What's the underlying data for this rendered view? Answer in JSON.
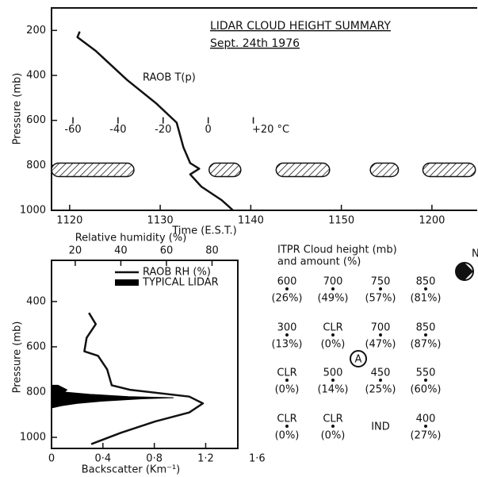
{
  "chart_data": [
    {
      "type": "line",
      "title": "LIDAR CLOUD HEIGHT SUMMARY",
      "subtitle": "Sept. 24th 1976",
      "xlabel": "Time (E.S.T.)",
      "ylabel": "Pressure (mb)",
      "xlim": [
        678,
        725
      ],
      "xticks": [
        {
          "value": 680,
          "label": "1120"
        },
        {
          "value": 690,
          "label": "1130"
        },
        {
          "value": 700,
          "label": "1140"
        },
        {
          "value": 710,
          "label": "1150"
        },
        {
          "value": 720,
          "label": "1200"
        }
      ],
      "ylim": [
        1000,
        100
      ],
      "yticks": [
        200,
        400,
        600,
        800,
        1000
      ],
      "x2lim": [
        -69.5,
        119.3
      ],
      "x2ticks": [
        -60,
        -40,
        -20,
        0,
        {
          "value": 20,
          "label": "+20 °C"
        }
      ],
      "x2_axis_pressure": 600,
      "series": [
        {
          "name": "RAOB T(p)",
          "color": "#111",
          "axis": "x2",
          "x": [
            -57,
            -58,
            -50,
            -36,
            -23,
            -14,
            -11,
            -8,
            -4,
            -8,
            -3,
            6,
            11
          ],
          "values": [
            205,
            230,
            290,
            420,
            525,
            610,
            720,
            790,
            815,
            840,
            895,
            955,
            1000
          ]
        }
      ],
      "clouds": {
        "x_start": [
          678,
          695.4,
          702.8,
          713.2,
          719.0
        ],
        "x_end": [
          687.1,
          698.9,
          708.7,
          716.3,
          724.8
        ],
        "top": 790,
        "base": 850
      }
    },
    {
      "type": "line",
      "xlabel": "Backscatter (Km⁻¹)",
      "x2label": "Relative humidity (%)",
      "ylabel": "Pressure (mb)",
      "xlim": [
        0,
        1.45
      ],
      "xticks": [
        0,
        {
          "value": 0.4,
          "label": "0·4"
        },
        {
          "value": 0.8,
          "label": "0·8"
        },
        {
          "value": 1.2,
          "label": "1·2"
        },
        {
          "value": 1.6,
          "label": "1·6"
        }
      ],
      "x2lim": [
        9.6,
        91.3
      ],
      "x2ticks": [
        20,
        40,
        60,
        80
      ],
      "ylim": [
        1049,
        218
      ],
      "yticks": [
        400,
        600,
        800,
        1000
      ],
      "series": [
        {
          "name": "RAOB RH (%)",
          "color": "#111",
          "axis": "x2",
          "x": [
            26,
            29,
            25,
            24,
            30,
            34,
            36,
            44,
            70,
            76,
            70,
            55,
            40,
            27
          ],
          "values": [
            450,
            500,
            560,
            620,
            640,
            700,
            770,
            790,
            820,
            850,
            890,
            930,
            980,
            1030
          ]
        },
        {
          "name": "TYPICAL LIDAR",
          "color": "#000",
          "type": "area",
          "x": [
            0.05,
            0.12,
            0.1,
            0.3,
            0.6,
            0.95,
            0.7,
            0.4,
            0.2,
            0.08,
            0
          ],
          "values": [
            770,
            790,
            800,
            810,
            820,
            825,
            830,
            840,
            850,
            860,
            870
          ]
        }
      ]
    }
  ],
  "itpr": {
    "title": "ITPR Cloud height (mb)",
    "subtitle": "and amount (%)",
    "north": "N",
    "site": "A",
    "rows": [
      [
        {
          "height": "600",
          "amount": "(26%)"
        },
        {
          "height": "700",
          "amount": "(49%)"
        },
        {
          "height": "750",
          "amount": "(57%)"
        },
        {
          "height": "850",
          "amount": "(81%)"
        }
      ],
      [
        {
          "height": "300",
          "amount": "(13%)"
        },
        {
          "height": "CLR",
          "amount": "(0%)"
        },
        {
          "height": "700",
          "amount": "(47%)"
        },
        {
          "height": "850",
          "amount": "(87%)"
        }
      ],
      [
        {
          "height": "CLR",
          "amount": "(0%)"
        },
        {
          "height": "500",
          "amount": "(14%)"
        },
        {
          "height": "450",
          "amount": "(25%)"
        },
        {
          "height": "550",
          "amount": "(60%)"
        }
      ],
      [
        {
          "height": "CLR",
          "amount": "(0%)"
        },
        {
          "height": "CLR",
          "amount": "(0%)"
        },
        {
          "height": "IND"
        },
        {
          "height": "400",
          "amount": "(27%)"
        }
      ]
    ]
  }
}
